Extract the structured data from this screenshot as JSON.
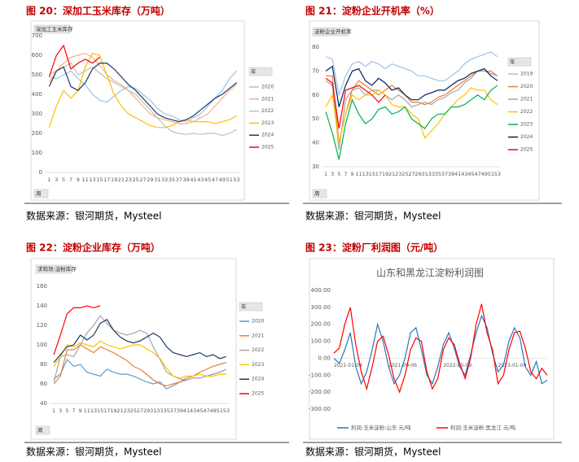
{
  "chart_data": [
    {
      "type": "line",
      "caption": "图 20：深加工玉米库存（万吨）",
      "source": "数据来源：银河期货，Mysteel",
      "field_label": "深加工玉米库存",
      "axis_button": "周",
      "legend_title": "年",
      "categories": [
        1,
        3,
        5,
        7,
        9,
        11,
        13,
        15,
        17,
        19,
        21,
        23,
        25,
        27,
        29,
        31,
        33,
        35,
        37,
        39,
        41,
        43,
        45,
        47,
        49,
        51,
        53
      ],
      "ylim": [
        0,
        700
      ],
      "yticks": [
        0,
        100,
        200,
        300,
        400,
        500,
        600,
        700
      ],
      "series": [
        {
          "name": "2020",
          "color": "#9dc3e6",
          "values": [
            490,
            480,
            500,
            520,
            480,
            450,
            400,
            370,
            360,
            390,
            420,
            440,
            430,
            400,
            370,
            330,
            300,
            290,
            270,
            260,
            280,
            300,
            340,
            380,
            420,
            480,
            520
          ]
        },
        {
          "name": "2021",
          "color": "#f4b183",
          "values": [
            460,
            520,
            560,
            590,
            600,
            610,
            590,
            550,
            500,
            470,
            450,
            420,
            380,
            340,
            300,
            280,
            270,
            260,
            250,
            250,
            260,
            280,
            300,
            340,
            380,
            420,
            450
          ]
        },
        {
          "name": "2022",
          "color": "#bfbfbf",
          "values": [
            500,
            520,
            540,
            560,
            500,
            520,
            540,
            510,
            480,
            460,
            440,
            420,
            400,
            360,
            320,
            280,
            240,
            210,
            200,
            195,
            200,
            195,
            200,
            200,
            190,
            200,
            220
          ]
        },
        {
          "name": "2023",
          "color": "#ffc000",
          "values": [
            230,
            340,
            420,
            380,
            420,
            540,
            610,
            600,
            500,
            400,
            340,
            300,
            280,
            260,
            240,
            230,
            230,
            240,
            260,
            270,
            260,
            260,
            260,
            250,
            260,
            270,
            290
          ]
        },
        {
          "name": "2024",
          "color": "#203864",
          "values": [
            440,
            520,
            540,
            440,
            420,
            460,
            530,
            560,
            560,
            530,
            490,
            450,
            420,
            380,
            340,
            300,
            280,
            270,
            260,
            270,
            290,
            320,
            350,
            380,
            400,
            430,
            460
          ]
        },
        {
          "name": "2025",
          "color": "#ff0000",
          "values": [
            490,
            600,
            650,
            530,
            560,
            580,
            560,
            590,
            null,
            null,
            null,
            null,
            null,
            null,
            null,
            null,
            null,
            null,
            null,
            null,
            null,
            null,
            null,
            null,
            null,
            null,
            null
          ]
        }
      ]
    },
    {
      "type": "line",
      "caption": "图 21：淀粉企业开机率（%）",
      "source": "数据来源：银河期货，Mysteel",
      "field_label": "淀粉企业开机率",
      "axis_button": "周",
      "legend_title": "年",
      "categories": [
        1,
        3,
        5,
        7,
        9,
        11,
        13,
        15,
        17,
        19,
        21,
        23,
        25,
        27,
        29,
        31,
        33,
        35,
        37,
        39,
        41,
        43,
        45,
        47,
        49,
        51,
        53
      ],
      "ylim": [
        30,
        80
      ],
      "yticks": [
        30,
        40,
        50,
        60,
        70,
        80
      ],
      "series": [
        {
          "name": "2019",
          "color": "#9dc3e6",
          "values": [
            76,
            75,
            60,
            68,
            73,
            74,
            72,
            74,
            73,
            71,
            73,
            72,
            71,
            70,
            68,
            68,
            67,
            66,
            66,
            68,
            70,
            73,
            75,
            76,
            77,
            78,
            76
          ]
        },
        {
          "name": "2020",
          "color": "#ed7d31",
          "values": [
            68,
            68,
            40,
            52,
            62,
            66,
            64,
            62,
            60,
            62,
            64,
            62,
            60,
            57,
            57,
            56,
            57,
            59,
            60,
            62,
            64,
            66,
            68,
            70,
            70,
            70,
            68
          ]
        },
        {
          "name": "2021",
          "color": "#a5a5a5",
          "values": [
            66,
            64,
            37,
            58,
            62,
            63,
            60,
            62,
            62,
            60,
            58,
            60,
            58,
            55,
            56,
            57,
            56,
            58,
            59,
            61,
            62,
            65,
            67,
            70,
            70,
            69,
            68
          ]
        },
        {
          "name": "2022",
          "color": "#ffc000",
          "values": [
            55,
            60,
            40,
            52,
            60,
            58,
            60,
            60,
            62,
            60,
            56,
            55,
            55,
            52,
            50,
            42,
            45,
            48,
            52,
            55,
            58,
            60,
            63,
            62,
            62,
            58,
            56
          ]
        },
        {
          "name": "2023",
          "color": "#00b050",
          "values": [
            53,
            44,
            33,
            48,
            58,
            52,
            48,
            50,
            54,
            55,
            52,
            53,
            55,
            50,
            48,
            46,
            50,
            52,
            52,
            55,
            55,
            56,
            58,
            60,
            58,
            62,
            64
          ]
        },
        {
          "name": "2024",
          "color": "#002060",
          "values": [
            70,
            72,
            55,
            64,
            70,
            71,
            66,
            64,
            67,
            65,
            62,
            63,
            60,
            58,
            58,
            60,
            61,
            62,
            62,
            64,
            66,
            67,
            69,
            70,
            71,
            68,
            66
          ]
        },
        {
          "name": "2025",
          "color": "#ff0000",
          "values": [
            67,
            65,
            46,
            62,
            63,
            64,
            62,
            60,
            57,
            60,
            null,
            null,
            null,
            null,
            null,
            null,
            null,
            null,
            null,
            null,
            null,
            null,
            null,
            null,
            null,
            null,
            null
          ]
        }
      ]
    },
    {
      "type": "line",
      "caption": "图 22：淀粉企业库存（万吨）",
      "source": "数据来源：银河期货，Mysteel",
      "field_label": "求和项:淀粉库存",
      "axis_button": "周",
      "legend_title": "年",
      "categories": [
        1,
        3,
        5,
        7,
        9,
        11,
        13,
        15,
        17,
        19,
        21,
        23,
        25,
        27,
        29,
        31,
        33,
        35,
        37,
        39,
        41,
        43,
        45,
        47,
        49,
        51,
        53
      ],
      "ylim": [
        40,
        160
      ],
      "yticks": [
        40,
        60,
        80,
        100,
        120,
        140,
        160
      ],
      "series": [
        {
          "name": "2020",
          "color": "#5b9bd5",
          "values": [
            65,
            70,
            85,
            78,
            80,
            72,
            70,
            68,
            75,
            72,
            70,
            70,
            68,
            65,
            62,
            60,
            62,
            55,
            58,
            62,
            64,
            66,
            66,
            68,
            70,
            72,
            75
          ]
        },
        {
          "name": "2021",
          "color": "#ed7d31",
          "values": [
            60,
            68,
            95,
            95,
            100,
            96,
            92,
            98,
            95,
            92,
            88,
            84,
            78,
            75,
            70,
            64,
            60,
            58,
            60,
            62,
            66,
            68,
            72,
            75,
            78,
            80,
            82
          ]
        },
        {
          "name": "2022",
          "color": "#a5a5a5",
          "values": [
            62,
            88,
            90,
            88,
            100,
            112,
            120,
            130,
            122,
            115,
            112,
            110,
            112,
            115,
            112,
            98,
            85,
            72,
            68,
            65,
            64,
            66,
            66,
            68,
            70,
            72,
            75
          ]
        },
        {
          "name": "2023",
          "color": "#ffc000",
          "values": [
            78,
            88,
            100,
            98,
            102,
            100,
            98,
            104,
            100,
            98,
            96,
            98,
            100,
            100,
            96,
            92,
            86,
            76,
            68,
            66,
            68,
            68,
            70,
            68,
            68,
            70,
            70
          ]
        },
        {
          "name": "2024",
          "color": "#203864",
          "values": [
            82,
            90,
            98,
            100,
            110,
            105,
            110,
            122,
            126,
            115,
            108,
            104,
            102,
            104,
            108,
            112,
            108,
            98,
            92,
            90,
            88,
            90,
            92,
            88,
            90,
            86,
            88
          ]
        },
        {
          "name": "2025",
          "color": "#ff0000",
          "values": [
            90,
            110,
            132,
            138,
            138,
            140,
            138,
            140,
            null,
            null,
            null,
            null,
            null,
            null,
            null,
            null,
            null,
            null,
            null,
            null,
            null,
            null,
            null,
            null,
            null,
            null,
            null
          ]
        }
      ]
    },
    {
      "type": "line",
      "caption": "图 23：淀粉厂利润图（元/吨）",
      "source": "数据来源：银河期货，Mysteel",
      "title": "山东和黑龙江淀粉利润图",
      "categories": [
        "2021-01-04",
        null,
        null,
        null,
        null,
        null,
        null,
        null,
        null,
        null,
        "2021-09-06",
        null,
        null,
        null,
        null,
        null,
        null,
        null,
        null,
        null,
        "2022-05-09",
        null,
        null,
        null,
        null,
        null,
        null,
        null,
        null,
        null,
        "2023-01-09",
        null,
        null,
        null,
        null,
        null,
        null,
        null,
        null,
        null
      ],
      "ylim": [
        -300,
        400
      ],
      "yticks": [
        {
          "value": -300,
          "label": "-300.00"
        },
        {
          "value": -200,
          "label": "-200.00"
        },
        {
          "value": -100,
          "label": "-100.00"
        },
        {
          "value": 0,
          "label": "0.00"
        },
        {
          "value": 100,
          "label": "100.00"
        },
        {
          "value": 200,
          "label": "200.00"
        },
        {
          "value": 300,
          "label": "300.00"
        },
        {
          "value": 400,
          "label": "400.00"
        }
      ],
      "series": [
        {
          "name": "利润:玉米淀粉:山东 元/吨",
          "color": "#2e75b6",
          "values": [
            0,
            -30,
            50,
            150,
            -50,
            -150,
            -80,
            50,
            200,
            100,
            -50,
            -150,
            -100,
            0,
            150,
            180,
            50,
            -100,
            -150,
            -50,
            80,
            150,
            60,
            -50,
            -100,
            20,
            150,
            250,
            180,
            30,
            -80,
            -40,
            100,
            180,
            120,
            -50,
            -100,
            -20,
            -150,
            -130
          ]
        },
        {
          "name": "利润:玉米淀粉:黑龙江 元/吨",
          "color": "#ff0000",
          "values": [
            30,
            60,
            200,
            300,
            80,
            -80,
            -180,
            -50,
            100,
            130,
            20,
            -120,
            -200,
            -100,
            50,
            120,
            100,
            -80,
            -180,
            -120,
            50,
            120,
            80,
            -30,
            -120,
            0,
            200,
            320,
            150,
            50,
            -150,
            -100,
            50,
            150,
            160,
            60,
            -80,
            -120,
            -60,
            -100
          ]
        }
      ]
    }
  ]
}
